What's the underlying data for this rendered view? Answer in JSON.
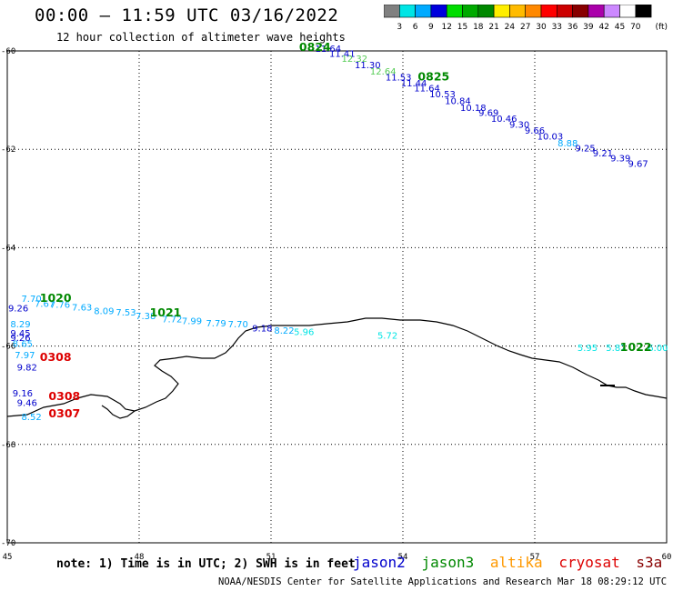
{
  "header": {
    "title": "00:00 – 11:59 UTC 03/16/2022",
    "subtitle": "12 hour collection of altimeter wave heights"
  },
  "colorbar": {
    "labels": [
      "3",
      "6",
      "9",
      "12",
      "15",
      "18",
      "21",
      "24",
      "27",
      "30",
      "33",
      "36",
      "39",
      "42",
      "45",
      "70"
    ],
    "unit": "(ft)",
    "colors": [
      "#808080",
      "#00e5e5",
      "#00aaff",
      "#0000dd",
      "#00dd00",
      "#00aa00",
      "#008800",
      "#ffee00",
      "#ffbb00",
      "#ff8800",
      "#ff0000",
      "#cc0000",
      "#880000",
      "#aa00aa",
      "#cc88ff",
      "#ffffff",
      "#000000"
    ]
  },
  "footer": {
    "note": "note:  1) Time is in UTC;  2) SWH is in feet",
    "satellites": [
      {
        "name": "jason2",
        "color": "#0000cc"
      },
      {
        "name": "jason3",
        "color": "#008800"
      },
      {
        "name": "altika",
        "color": "#ff9900"
      },
      {
        "name": "cryosat",
        "color": "#dd0000"
      },
      {
        "name": "s3a",
        "color": "#880000"
      }
    ],
    "credit": "NOAA/NESDIS Center for Satellite Applications and Research   Mar 18 08:29:12 UTC 2022"
  },
  "chart_data": {
    "type": "scatter",
    "title": "00:00 – 11:59 UTC 03/16/2022",
    "subtitle": "12 hour collection of altimeter wave heights",
    "x_ticks": [
      "45",
      "48",
      "51",
      "54",
      "57",
      "60"
    ],
    "y_ticks": [
      "-60",
      "-62",
      "-64",
      "-66",
      "-68",
      "-70"
    ],
    "xlim": [
      45,
      60
    ],
    "ylim": [
      -70,
      -60
    ],
    "grid": true,
    "unit": "ft",
    "pass_times": [
      {
        "label": "0824",
        "lon": 52.0,
        "lat": -60.0,
        "color": "#008800"
      },
      {
        "label": "0825",
        "lon": 54.7,
        "lat": -60.6,
        "color": "#008800"
      },
      {
        "label": "1020",
        "lon": 46.1,
        "lat": -65.1,
        "color": "#008800"
      },
      {
        "label": "1021",
        "lon": 48.6,
        "lat": -65.4,
        "color": "#008800"
      },
      {
        "label": "1022",
        "lon": 59.3,
        "lat": -66.1,
        "color": "#008800"
      },
      {
        "label": "0308",
        "lon": 46.1,
        "lat": -66.3,
        "color": "#dd0000"
      },
      {
        "label": "0308",
        "lon": 46.3,
        "lat": -67.1,
        "color": "#dd0000"
      },
      {
        "label": "0307",
        "lon": 46.3,
        "lat": -67.45,
        "color": "#dd0000"
      }
    ],
    "series": [
      {
        "points": [
          {
            "lon": 52.3,
            "lat": -60.02,
            "v": "11.64",
            "c": "#0000cc"
          },
          {
            "lon": 52.62,
            "lat": -60.12,
            "v": "11.41",
            "c": "#0000cc"
          },
          {
            "lon": 52.9,
            "lat": -60.22,
            "v": "12.32",
            "c": "#55cc55"
          },
          {
            "lon": 53.2,
            "lat": -60.35,
            "v": "11.30",
            "c": "#0000cc"
          },
          {
            "lon": 53.55,
            "lat": -60.48,
            "v": "12.64",
            "c": "#55cc55"
          },
          {
            "lon": 53.9,
            "lat": -60.6,
            "v": "11.53",
            "c": "#0000cc"
          },
          {
            "lon": 54.25,
            "lat": -60.72,
            "v": "11.44",
            "c": "#0000cc"
          },
          {
            "lon": 54.55,
            "lat": -60.82,
            "v": "11.64",
            "c": "#0000cc"
          },
          {
            "lon": 54.9,
            "lat": -60.94,
            "v": "10.53",
            "c": "#0000cc"
          },
          {
            "lon": 55.25,
            "lat": -61.08,
            "v": "10.84",
            "c": "#0000cc"
          },
          {
            "lon": 55.6,
            "lat": -61.22,
            "v": "10.18",
            "c": "#0000cc"
          },
          {
            "lon": 55.95,
            "lat": -61.32,
            "v": "9.69",
            "c": "#0000cc"
          },
          {
            "lon": 56.3,
            "lat": -61.44,
            "v": "10.46",
            "c": "#0000cc"
          },
          {
            "lon": 56.65,
            "lat": -61.56,
            "v": "9.30",
            "c": "#0000cc"
          },
          {
            "lon": 57.0,
            "lat": -61.68,
            "v": "9.66",
            "c": "#0000cc"
          },
          {
            "lon": 57.35,
            "lat": -61.8,
            "v": "10.03",
            "c": "#0000cc"
          },
          {
            "lon": 57.75,
            "lat": -61.94,
            "v": "8.88",
            "c": "#00aaff"
          },
          {
            "lon": 58.15,
            "lat": -62.04,
            "v": "9.25",
            "c": "#0000cc"
          },
          {
            "lon": 58.55,
            "lat": -62.14,
            "v": "9.21",
            "c": "#0000cc"
          },
          {
            "lon": 58.95,
            "lat": -62.25,
            "v": "9.39",
            "c": "#0000cc"
          },
          {
            "lon": 59.35,
            "lat": -62.36,
            "v": "9.67",
            "c": "#0000cc"
          }
        ]
      },
      {
        "points": [
          {
            "lon": 45.55,
            "lat": -65.1,
            "v": "7.70",
            "c": "#00aaff"
          },
          {
            "lon": 45.25,
            "lat": -65.3,
            "v": "9.26",
            "c": "#0000cc"
          },
          {
            "lon": 45.85,
            "lat": -65.2,
            "v": "7.67",
            "c": "#00aaff"
          },
          {
            "lon": 46.2,
            "lat": -65.22,
            "v": "7.76",
            "c": "#00aaff"
          },
          {
            "lon": 46.7,
            "lat": -65.28,
            "v": "7.63",
            "c": "#00aaff"
          },
          {
            "lon": 47.2,
            "lat": -65.35,
            "v": "8.09",
            "c": "#00aaff"
          },
          {
            "lon": 47.7,
            "lat": -65.38,
            "v": "7.53",
            "c": "#00aaff"
          },
          {
            "lon": 48.15,
            "lat": -65.45,
            "v": "7.38",
            "c": "#00aaff"
          },
          {
            "lon": 48.75,
            "lat": -65.52,
            "v": "7.72",
            "c": "#00aaff"
          },
          {
            "lon": 49.2,
            "lat": -65.55,
            "v": "7.99",
            "c": "#00aaff"
          },
          {
            "lon": 49.75,
            "lat": -65.6,
            "v": "7.79",
            "c": "#00aaff"
          },
          {
            "lon": 50.25,
            "lat": -65.62,
            "v": "7.70",
            "c": "#00aaff"
          },
          {
            "lon": 50.8,
            "lat": -65.7,
            "v": "9.18",
            "c": "#0000cc"
          },
          {
            "lon": 51.3,
            "lat": -65.75,
            "v": "8.22",
            "c": "#00aaff"
          },
          {
            "lon": 51.75,
            "lat": -65.78,
            "v": "5.96",
            "c": "#00e5e5"
          },
          {
            "lon": 53.65,
            "lat": -65.85,
            "v": "5.72",
            "c": "#00e5e5"
          }
        ]
      },
      {
        "points": [
          {
            "lon": 45.3,
            "lat": -65.62,
            "v": "8.29",
            "c": "#00aaff"
          },
          {
            "lon": 45.3,
            "lat": -65.8,
            "v": "9.45",
            "c": "#0000cc"
          },
          {
            "lon": 45.3,
            "lat": -65.9,
            "v": "9.26",
            "c": "#0000cc"
          },
          {
            "lon": 45.35,
            "lat": -66.02,
            "v": "8.65",
            "c": "#00aaff"
          },
          {
            "lon": 45.4,
            "lat": -66.25,
            "v": "7.97",
            "c": "#00aaff"
          },
          {
            "lon": 45.45,
            "lat": -66.5,
            "v": "9.82",
            "c": "#0000cc"
          },
          {
            "lon": 45.35,
            "lat": -67.02,
            "v": "9.16",
            "c": "#0000cc"
          },
          {
            "lon": 45.45,
            "lat": -67.22,
            "v": "9.46",
            "c": "#0000cc"
          },
          {
            "lon": 45.55,
            "lat": -67.5,
            "v": "8.52",
            "c": "#00aaff"
          }
        ]
      },
      {
        "points": [
          {
            "lon": 58.2,
            "lat": -66.1,
            "v": "5.95",
            "c": "#00e5e5"
          },
          {
            "lon": 58.85,
            "lat": -66.1,
            "v": "5.82",
            "c": "#00e5e5"
          },
          {
            "lon": 59.8,
            "lat": -66.1,
            "v": "6.00",
            "c": "#00e5e5"
          }
        ]
      }
    ]
  }
}
